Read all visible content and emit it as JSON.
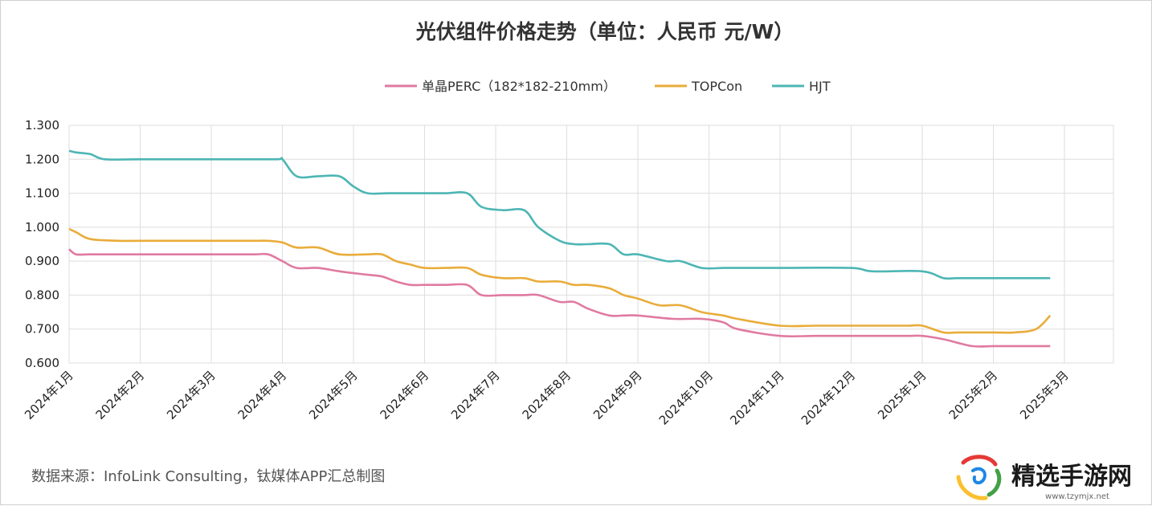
{
  "chart_data": {
    "type": "line",
    "title": "光伏组件价格走势（单位：人民币 元/W）",
    "categories": [
      "2024年1月",
      "2024年2月",
      "2024年3月",
      "2024年4月",
      "2024年5月",
      "2024年6月",
      "2024年7月",
      "2024年8月",
      "2024年9月",
      "2024年10月",
      "2024年11月",
      "2024年12月",
      "2025年1月",
      "2025年2月",
      "2025年3月"
    ],
    "ylim": [
      0.6,
      1.3
    ],
    "yticks": [
      "1.300",
      "1.200",
      "1.100",
      "1.000",
      "0.900",
      "0.800",
      "0.700",
      "0.600"
    ],
    "ytick_values": [
      1.3,
      1.2,
      1.1,
      1.0,
      0.9,
      0.8,
      0.7,
      0.6
    ],
    "grid": true,
    "legend_position": "top-center",
    "series": [
      {
        "name": "单晶PERC（182*182-210mm）",
        "color": "#e07aa0",
        "x": [
          0,
          0.1,
          0.3,
          1,
          2,
          2.6,
          2.8,
          3,
          3.2,
          3.5,
          3.8,
          4.2,
          4.4,
          4.6,
          4.8,
          5,
          5.3,
          5.6,
          5.8,
          6.1,
          6.4,
          6.6,
          6.9,
          7.1,
          7.3,
          7.6,
          7.8,
          8,
          8.5,
          8.9,
          9.2,
          9.4,
          10,
          10.5,
          11,
          11.5,
          11.8,
          12,
          12.3,
          12.7,
          13,
          13.3,
          13.6,
          13.8
        ],
        "values": [
          0.935,
          0.92,
          0.92,
          0.92,
          0.92,
          0.92,
          0.92,
          0.9,
          0.88,
          0.88,
          0.87,
          0.86,
          0.855,
          0.84,
          0.83,
          0.83,
          0.83,
          0.83,
          0.8,
          0.8,
          0.8,
          0.8,
          0.78,
          0.78,
          0.76,
          0.74,
          0.74,
          0.74,
          0.73,
          0.73,
          0.72,
          0.7,
          0.68,
          0.68,
          0.68,
          0.68,
          0.68,
          0.68,
          0.67,
          0.65,
          0.65,
          0.65,
          0.65,
          0.65
        ]
      },
      {
        "name": "TOPCon",
        "color": "#e9ac3a",
        "x": [
          0,
          0.1,
          0.3,
          0.7,
          1,
          2,
          2.6,
          2.8,
          3,
          3.2,
          3.5,
          3.8,
          4.2,
          4.4,
          4.6,
          4.8,
          5,
          5.3,
          5.6,
          5.8,
          6.1,
          6.4,
          6.6,
          6.9,
          7.1,
          7.3,
          7.6,
          7.8,
          8,
          8.3,
          8.6,
          8.9,
          9.2,
          9.4,
          10,
          10.5,
          11,
          11.5,
          11.8,
          12,
          12.3,
          12.5,
          13,
          13.3,
          13.6,
          13.8
        ],
        "values": [
          0.995,
          0.985,
          0.965,
          0.96,
          0.96,
          0.96,
          0.96,
          0.96,
          0.955,
          0.94,
          0.94,
          0.92,
          0.92,
          0.92,
          0.9,
          0.89,
          0.88,
          0.88,
          0.88,
          0.86,
          0.85,
          0.85,
          0.84,
          0.84,
          0.83,
          0.83,
          0.82,
          0.8,
          0.79,
          0.77,
          0.77,
          0.75,
          0.74,
          0.73,
          0.71,
          0.71,
          0.71,
          0.71,
          0.71,
          0.71,
          0.69,
          0.69,
          0.69,
          0.69,
          0.7,
          0.74
        ]
      },
      {
        "name": "HJT",
        "color": "#4db6b4",
        "x": [
          0,
          0.1,
          0.3,
          0.5,
          1,
          2,
          2.9,
          3,
          3.2,
          3.5,
          3.8,
          4,
          4.2,
          4.5,
          5,
          5.3,
          5.6,
          5.8,
          6.1,
          6.4,
          6.6,
          6.9,
          7.1,
          7.3,
          7.6,
          7.8,
          8,
          8.4,
          8.6,
          8.9,
          9.2,
          9.4,
          10,
          11,
          11.3,
          12,
          12.3,
          12.5,
          13,
          13.8
        ],
        "values": [
          1.225,
          1.22,
          1.215,
          1.2,
          1.2,
          1.2,
          1.2,
          1.2,
          1.15,
          1.15,
          1.15,
          1.12,
          1.1,
          1.1,
          1.1,
          1.1,
          1.1,
          1.06,
          1.05,
          1.05,
          1.0,
          0.96,
          0.95,
          0.95,
          0.95,
          0.92,
          0.92,
          0.9,
          0.9,
          0.88,
          0.88,
          0.88,
          0.88,
          0.88,
          0.87,
          0.87,
          0.85,
          0.85,
          0.85,
          0.85
        ]
      }
    ]
  },
  "source_note": "数据来源：InfoLink Consulting，钛媒体APP汇总制图",
  "watermark": {
    "text": "精选手游网",
    "url": "www.tzymjx.net"
  }
}
